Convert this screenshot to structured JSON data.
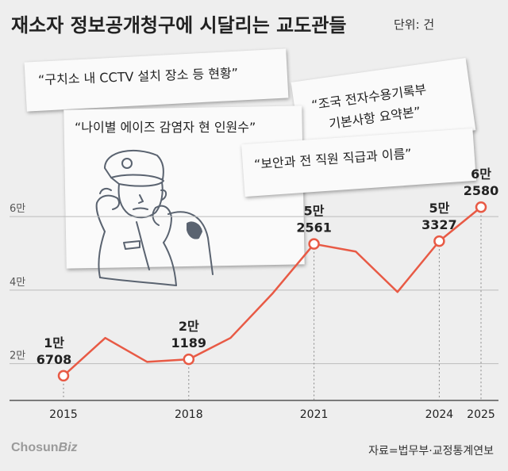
{
  "title": "재소자 정보공개청구에 시달리는 교도관들",
  "unit": "단위: 건",
  "quotes": [
    "“구치소 내 CCTV 설치 장소 등 현황”",
    "“조국 전자수용기록부",
    "기본사항 요약본”",
    "“나이별 에이즈 감염자 현 인원수”",
    "“보안과 전 직원 직급과 이름”"
  ],
  "source": "자료=법무부·교정통계연보",
  "logo": {
    "main": "Chosun",
    "sub": "Biz"
  },
  "colors": {
    "line": "#e85a45",
    "axis": "#555555",
    "grid": "#bbbbbb"
  },
  "chart_data": {
    "type": "line",
    "x": [
      2015,
      2016,
      2017,
      2018,
      2019,
      2020,
      2021,
      2022,
      2023,
      2024,
      2025
    ],
    "values": [
      16708,
      27000,
      20500,
      21189,
      27000,
      39000,
      52561,
      50500,
      39500,
      53327,
      62580
    ],
    "x_tick_labels": [
      "2015",
      "2018",
      "2021",
      "2024",
      "2025"
    ],
    "x_tick_values": [
      2015,
      2018,
      2021,
      2024,
      2025
    ],
    "y_tick_labels": [
      "2만",
      "4만",
      "6만"
    ],
    "y_tick_values": [
      20000,
      40000,
      60000
    ],
    "ylim": [
      10000,
      65000
    ],
    "grid": true,
    "data_labels": [
      {
        "x": 2015,
        "line1": "1만",
        "line2": "6708"
      },
      {
        "x": 2018,
        "line1": "2만",
        "line2": "1189"
      },
      {
        "x": 2021,
        "line1": "5만",
        "line2": "2561"
      },
      {
        "x": 2024,
        "line1": "5만",
        "line2": "3327"
      },
      {
        "x": 2025,
        "line1": "6만",
        "line2": "2580"
      }
    ]
  }
}
